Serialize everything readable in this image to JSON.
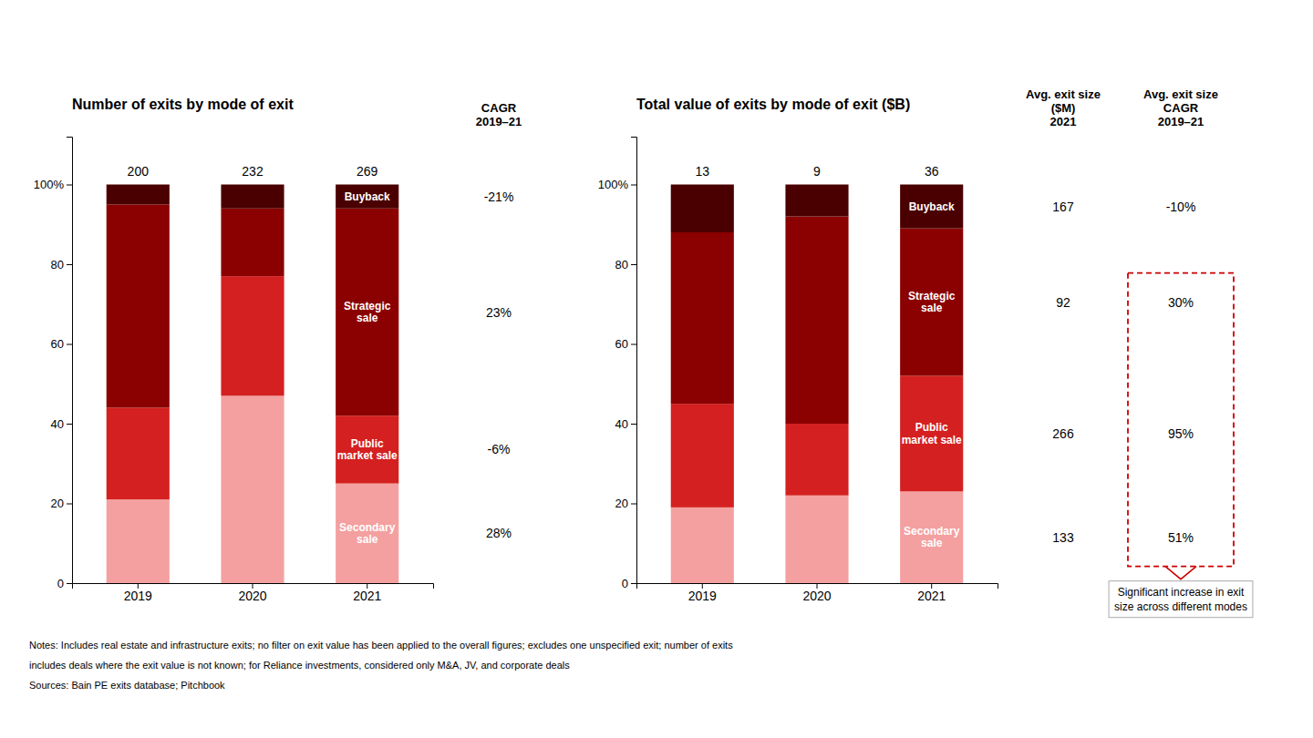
{
  "chart_data": [
    {
      "type": "bar",
      "stacked": true,
      "grid": false,
      "title": "Number of exits by mode of exit",
      "categories": [
        "2019",
        "2020",
        "2021"
      ],
      "series": [
        {
          "name": "Secondary\nsale",
          "color": "#F4A0A0",
          "values": [
            21,
            47,
            25
          ]
        },
        {
          "name": "Public\nmarket sale",
          "color": "#D42020",
          "values": [
            23,
            30,
            17
          ]
        },
        {
          "name": "Strategic\nsale",
          "color": "#8B0000",
          "values": [
            51,
            17,
            52
          ]
        },
        {
          "name": "Buyback",
          "color": "#4A0000",
          "values": [
            5,
            6,
            6
          ]
        }
      ],
      "totals": [
        200,
        232,
        269
      ],
      "side_columns": [
        {
          "label": "CAGR\n2019–21",
          "values": [
            "28%",
            "-6%",
            "23%",
            "-21%"
          ]
        }
      ],
      "ylim": [
        0,
        112
      ],
      "yticks": [
        0,
        20,
        40,
        60,
        80,
        {
          "value": 100,
          "label": "100%"
        }
      ]
    },
    {
      "type": "bar",
      "stacked": true,
      "grid": false,
      "title": "Total value of exits by mode of exit ($B)",
      "categories": [
        "2019",
        "2020",
        "2021"
      ],
      "series": [
        {
          "name": "Secondary\nsale",
          "color": "#F4A0A0",
          "values": [
            19,
            22,
            23
          ]
        },
        {
          "name": "Public\nmarket sale",
          "color": "#D42020",
          "values": [
            26,
            18,
            29
          ]
        },
        {
          "name": "Strategic\nsale",
          "color": "#8B0000",
          "values": [
            43,
            52,
            37
          ]
        },
        {
          "name": "Buyback",
          "color": "#4A0000",
          "values": [
            12,
            8,
            11
          ]
        }
      ],
      "totals": [
        13,
        9,
        36
      ],
      "side_columns": [
        {
          "label": "Avg. exit size\n($M)\n2021",
          "values": [
            133,
            266,
            92,
            167
          ]
        },
        {
          "label": "Avg. exit size\nCAGR\n2019–21",
          "values": [
            "51%",
            "95%",
            "30%",
            "-10%"
          ]
        }
      ],
      "annotation": "Significant increase in exit\nsize across different modes",
      "ylim": [
        0,
        112
      ],
      "yticks": [
        0,
        20,
        40,
        60,
        80,
        {
          "value": 100,
          "label": "100%"
        }
      ]
    }
  ],
  "notes": [
    "Notes: Includes real estate and infrastructure exits; no filter on exit value has been applied to the overall figures; excludes one unspecified exit; number of exits",
    "includes deals where the exit value is not known; for Reliance investments, considered only M&A, JV, and corporate deals",
    "Sources: Bain PE exits database; Pitchbook"
  ]
}
